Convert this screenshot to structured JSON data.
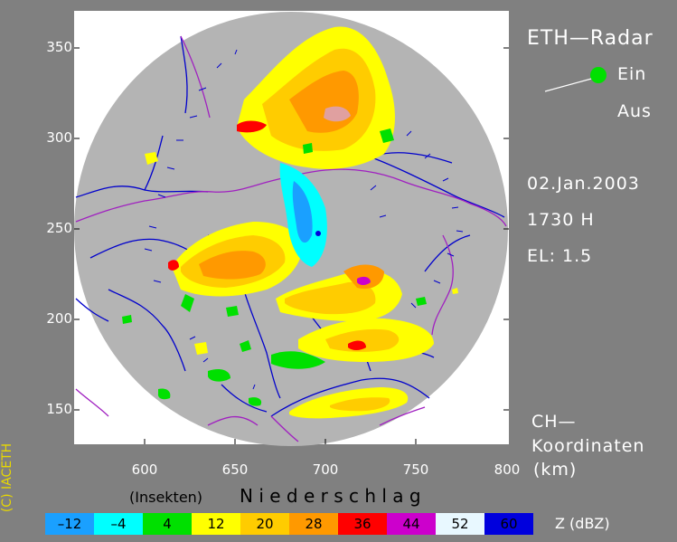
{
  "header": {
    "title": "ETH—Radar"
  },
  "switch": {
    "on_label": "Ein",
    "off_label": "Aus",
    "state_color": "#00e000"
  },
  "info": {
    "date": "02.Jan.2003",
    "time": "1730 H",
    "elevation": "EL: 1.5"
  },
  "axes": {
    "y_ticks": [
      "350",
      "300",
      "250",
      "200",
      "150"
    ],
    "x_ticks": [
      "600",
      "650",
      "700",
      "750",
      "800"
    ],
    "xlim": [
      563,
      800
    ],
    "ylim": [
      135,
      375
    ],
    "coord_label_line1": "CH—",
    "coord_label_line2": "Koordinaten",
    "coord_label_line3": "(km)"
  },
  "legend": {
    "insects_label": "(Insekten)",
    "precip_label": "N i e d e r s c h l a g",
    "unit_label": "Z  (dBZ)",
    "classes": [
      {
        "value": "–12",
        "color": "#1aa0ff"
      },
      {
        "value": "–4",
        "color": "#00ffff"
      },
      {
        "value": "4",
        "color": "#00e000"
      },
      {
        "value": "12",
        "color": "#ffff00"
      },
      {
        "value": "20",
        "color": "#ffcc00"
      },
      {
        "value": "28",
        "color": "#ff9900"
      },
      {
        "value": "36",
        "color": "#ff0000"
      },
      {
        "value": "44",
        "color": "#cc00cc"
      },
      {
        "value": "52",
        "color": "#e8f8ff"
      },
      {
        "value": "60",
        "color": "#0000dd"
      }
    ]
  },
  "copyright": "(C) IACETH",
  "colors": {
    "background": "#808080",
    "radar_disc": "#b4b4b4",
    "border": "#a020c0",
    "rivers": "#0000cc"
  }
}
